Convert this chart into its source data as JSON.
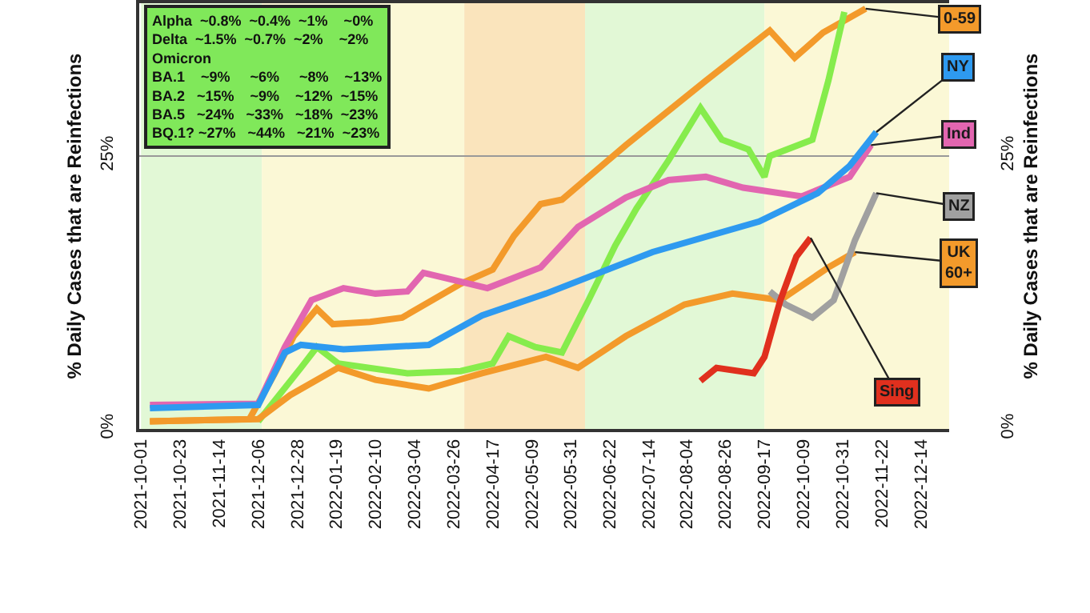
{
  "chart_data": {
    "type": "line",
    "ylabel": "% Daily Cases that are Reinfections",
    "y2label": "% Daily Cases that are Reinfections",
    "annotations": [
      "Alpha  ~0.8%  ~0.4%  ~1%    ~0%\nDelta  ~1.5%  ~0.7%  ~2%    ~2%\nOmicron\nBA.1    ~9%     ~6%     ~8%    ~13%\nBA.2   ~15%    ~9%    ~12%  ~15%\nBA.5   ~24%   ~33%   ~18%  ~23%\nBQ.1? ~27%   ~44%   ~21%  ~23%"
    ],
    "xlim": [
      "2021-09-30",
      "2022-12-30"
    ],
    "xticks": [
      "2021-10-01",
      "2021-10-23",
      "2021-11-14",
      "2021-12-06",
      "2021-12-28",
      "2022-01-19",
      "2022-02-10",
      "2022-03-04",
      "2022-03-26",
      "2022-04-17",
      "2022-05-09",
      "2022-05-31",
      "2022-06-22",
      "2022-07-14",
      "2022-08-04",
      "2022-08-26",
      "2022-09-17",
      "2022-10-09",
      "2022-10-31",
      "2022-11-22",
      "2022-12-14"
    ],
    "ylim": [
      0,
      39
    ],
    "yticks": [
      {
        "value": 0,
        "label": "0%"
      },
      {
        "value": 25,
        "label": "25%"
      }
    ],
    "y2lim": [
      0,
      39
    ],
    "y2ticks": [
      {
        "value": 0,
        "label": "0%"
      },
      {
        "value": 25,
        "label": "25%"
      }
    ],
    "grid": "y",
    "legend": "right",
    "marker": "none",
    "line_style": "solid",
    "bands": [
      {
        "axis": "x",
        "from": "2021-10-01",
        "to": "2021-12-08",
        "color": "#e2f8d6"
      },
      {
        "axis": "x",
        "from": "2021-12-08",
        "to": "2022-04-01",
        "color": "#fbf8d6"
      },
      {
        "axis": "x",
        "from": "2022-04-01",
        "to": "2022-06-08",
        "color": "#fae4bc"
      },
      {
        "axis": "x",
        "from": "2022-06-08",
        "to": "2022-09-17",
        "color": "#e2f8d6"
      },
      {
        "axis": "x",
        "from": "2022-09-17",
        "to": "2022-12-30",
        "color": "#fbf8d6"
      }
    ],
    "series": [
      {
        "name": "0-59",
        "color": "#f39a2b",
        "x": [
          "2021-10-06",
          "2021-12-01",
          "2021-12-15",
          "2021-12-26",
          "2022-01-08",
          "2022-01-17",
          "2022-02-07",
          "2022-02-25",
          "2022-03-30",
          "2022-04-17",
          "2022-04-29",
          "2022-05-14",
          "2022-05-26",
          "2022-07-01",
          "2022-08-15",
          "2022-09-20",
          "2022-10-04",
          "2022-10-20",
          "2022-11-13"
        ],
        "values": [
          0.7,
          0.9,
          5,
          8.5,
          11,
          9.6,
          9.8,
          10.2,
          13.3,
          14.6,
          17.7,
          20.6,
          21,
          26,
          31.9,
          36.5,
          34,
          36.3,
          38.5
        ]
      },
      {
        "color": "#86ec4c",
        "x": [
          "2021-12-06",
          "2021-12-30",
          "2022-01-08",
          "2022-01-20",
          "2022-02-28",
          "2022-03-30",
          "2022-04-17",
          "2022-04-26",
          "2022-05-11",
          "2022-05-26",
          "2022-06-10",
          "2022-06-25",
          "2022-07-07",
          "2022-07-25",
          "2022-08-12",
          "2022-08-24",
          "2022-09-08",
          "2022-09-17",
          "2022-09-20",
          "2022-10-14",
          "2022-10-23",
          "2022-11-01"
        ],
        "values": [
          0.7,
          5.6,
          7.5,
          6,
          5.1,
          5.3,
          6,
          8.5,
          7.5,
          7,
          11.8,
          16.8,
          20.2,
          24.6,
          29.4,
          26.5,
          25.6,
          23.1,
          25,
          26.5,
          31.9,
          38.2
        ]
      },
      {
        "name": "Ind",
        "color": "#e266b0",
        "x": [
          "2021-10-06",
          "2021-12-06",
          "2021-12-21",
          "2022-01-05",
          "2022-01-23",
          "2022-02-10",
          "2022-02-28",
          "2022-03-09",
          "2022-03-27",
          "2022-04-14",
          "2022-05-14",
          "2022-06-04",
          "2022-07-01",
          "2022-07-25",
          "2022-08-15",
          "2022-09-05",
          "2022-10-08",
          "2022-11-04",
          "2022-11-16"
        ],
        "values": [
          2.2,
          2.3,
          7.5,
          11.8,
          12.9,
          12.4,
          12.6,
          14.3,
          13.6,
          12.9,
          14.8,
          18.5,
          21.2,
          22.8,
          23.1,
          22.1,
          21.3,
          23.1,
          26
        ]
      },
      {
        "name": "NY",
        "color": "#2e9af0",
        "x": [
          "2021-10-06",
          "2021-12-06",
          "2021-12-21",
          "2021-12-30",
          "2022-01-23",
          "2022-03-12",
          "2022-04-11",
          "2022-05-17",
          "2022-07-16",
          "2022-09-14",
          "2022-10-17",
          "2022-11-04",
          "2022-11-19"
        ],
        "values": [
          1.9,
          2.2,
          7,
          7.7,
          7.3,
          7.7,
          10.4,
          12.4,
          16.2,
          19,
          21.6,
          24.1,
          27.2
        ]
      },
      {
        "name": "UK\n60+",
        "color": "#f39a2b",
        "x": [
          "2021-10-06",
          "2021-12-06",
          "2021-12-24",
          "2022-01-20",
          "2022-02-10",
          "2022-03-12",
          "2022-04-11",
          "2022-05-17",
          "2022-06-04",
          "2022-07-01",
          "2022-08-03",
          "2022-08-30",
          "2022-09-26",
          "2022-10-23",
          "2022-11-07"
        ],
        "values": [
          0.7,
          0.9,
          3.1,
          5.6,
          4.5,
          3.7,
          5.1,
          6.6,
          5.6,
          8.5,
          11.4,
          12.4,
          11.8,
          14.8,
          16.2
        ]
      },
      {
        "name": "NZ",
        "color": "#a0a0a0",
        "x": [
          "2022-09-20",
          "2022-09-29",
          "2022-10-14",
          "2022-10-26",
          "2022-11-07",
          "2022-11-19"
        ],
        "values": [
          12.6,
          11.4,
          10.2,
          11.8,
          17.3,
          21.6
        ]
      },
      {
        "name": "Sing",
        "color": "#e0301e",
        "x": [
          "2022-08-12",
          "2022-08-21",
          "2022-09-11",
          "2022-09-17",
          "2022-09-26",
          "2022-10-05",
          "2022-10-13"
        ],
        "values": [
          4.4,
          5.6,
          5.1,
          6.6,
          11.8,
          15.8,
          17.5
        ]
      }
    ]
  }
}
